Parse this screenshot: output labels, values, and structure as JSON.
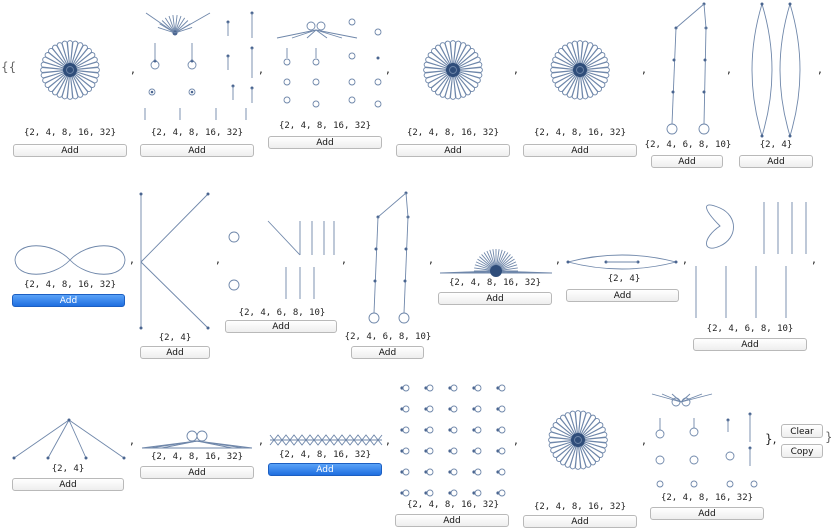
{
  "open_brace": "{{",
  "separator": ",",
  "close_brace": "},",
  "final_brace": "}",
  "add_label": "Add",
  "clear_label": "Clear",
  "copy_label": "Copy",
  "graphs": [
    {
      "label": "{2, 4, 8, 16, 32}",
      "type": "flower"
    },
    {
      "label": "{2, 4, 8, 16, 32}",
      "type": "fan-cluster"
    },
    {
      "label": "{2, 4, 8, 16, 32}",
      "type": "butterfly-cluster"
    },
    {
      "label": "{2, 4, 8, 16, 32}",
      "type": "flower"
    },
    {
      "label": "{2, 4, 8, 16, 32}",
      "type": "flower"
    },
    {
      "label": "{2, 4, 6, 8, 10}",
      "type": "chains"
    },
    {
      "label": "{2, 4}",
      "type": "lens"
    },
    {
      "label": "{2, 4, 8, 16, 32}",
      "type": "infinity",
      "selected": true
    },
    {
      "label": "{2, 4}",
      "type": "wedge"
    },
    {
      "label": "{2, 4, 6, 8, 10}",
      "type": "loops-arrows"
    },
    {
      "label": "{2, 4, 6, 8, 10}",
      "type": "chains"
    },
    {
      "label": "{2, 4, 8, 16, 32}",
      "type": "half-flower"
    },
    {
      "label": "{2, 4}",
      "type": "eye"
    },
    {
      "label": "{2, 4, 6, 8, 10}",
      "type": "figure-eight-arrows"
    },
    {
      "label": "{2, 4}",
      "type": "fan"
    },
    {
      "label": "{2, 4, 8, 16, 32}",
      "type": "bowtie-line"
    },
    {
      "label": "{2, 4, 8, 16, 32}",
      "type": "zigzag",
      "selected": true
    },
    {
      "label": "{2, 4, 8, 16, 32}",
      "type": "loop-grid"
    },
    {
      "label": "{2, 4, 8, 16, 32}",
      "type": "flower"
    },
    {
      "label": "{2, 4, 8, 16, 32}",
      "type": "fan-cluster"
    }
  ]
}
